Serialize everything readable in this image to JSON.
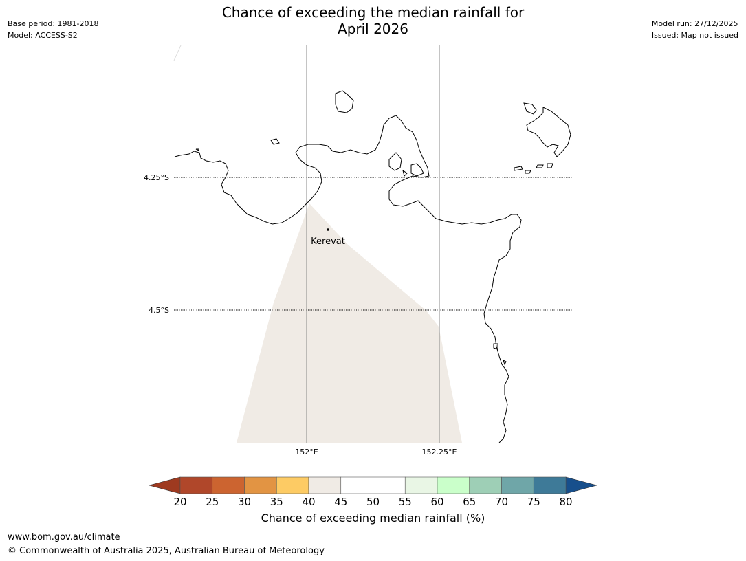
{
  "title_line1": "Chance of exceeding the median rainfall for",
  "title_line2": "April 2026",
  "meta": {
    "base_period": "Base period: 1981-2018",
    "model": "Model: ACCESS-S2",
    "model_run": "Model run: 27/12/2025",
    "issued": "Issued: Map not issued"
  },
  "map": {
    "lat_labels": [
      "4.25°S",
      "4.5°S"
    ],
    "lon_labels": [
      "152°E",
      "152.25°E"
    ],
    "place": "Kerevat",
    "shaded_category": "40–45",
    "shaded_color": "#f0ebe5"
  },
  "colorbar": {
    "title": "Chance of exceeding median rainfall (%)",
    "ticks": [
      "20",
      "25",
      "30",
      "35",
      "40",
      "45",
      "50",
      "55",
      "60",
      "65",
      "70",
      "75",
      "80"
    ],
    "under_color": "#9e3a20",
    "over_color": "#174f8c",
    "colors": [
      "#b0472a",
      "#cc6430",
      "#e29443",
      "#fdcb64",
      "#f0ebe5",
      "#ffffff",
      "#ffffff",
      "#e9f6e5",
      "#caffca",
      "#9ecfb6",
      "#6fa6a8",
      "#3e7a98"
    ]
  },
  "footer": {
    "url": "www.bom.gov.au/climate",
    "copyright": "© Commonwealth of Australia 2025, Australian Bureau of Meteorology"
  }
}
